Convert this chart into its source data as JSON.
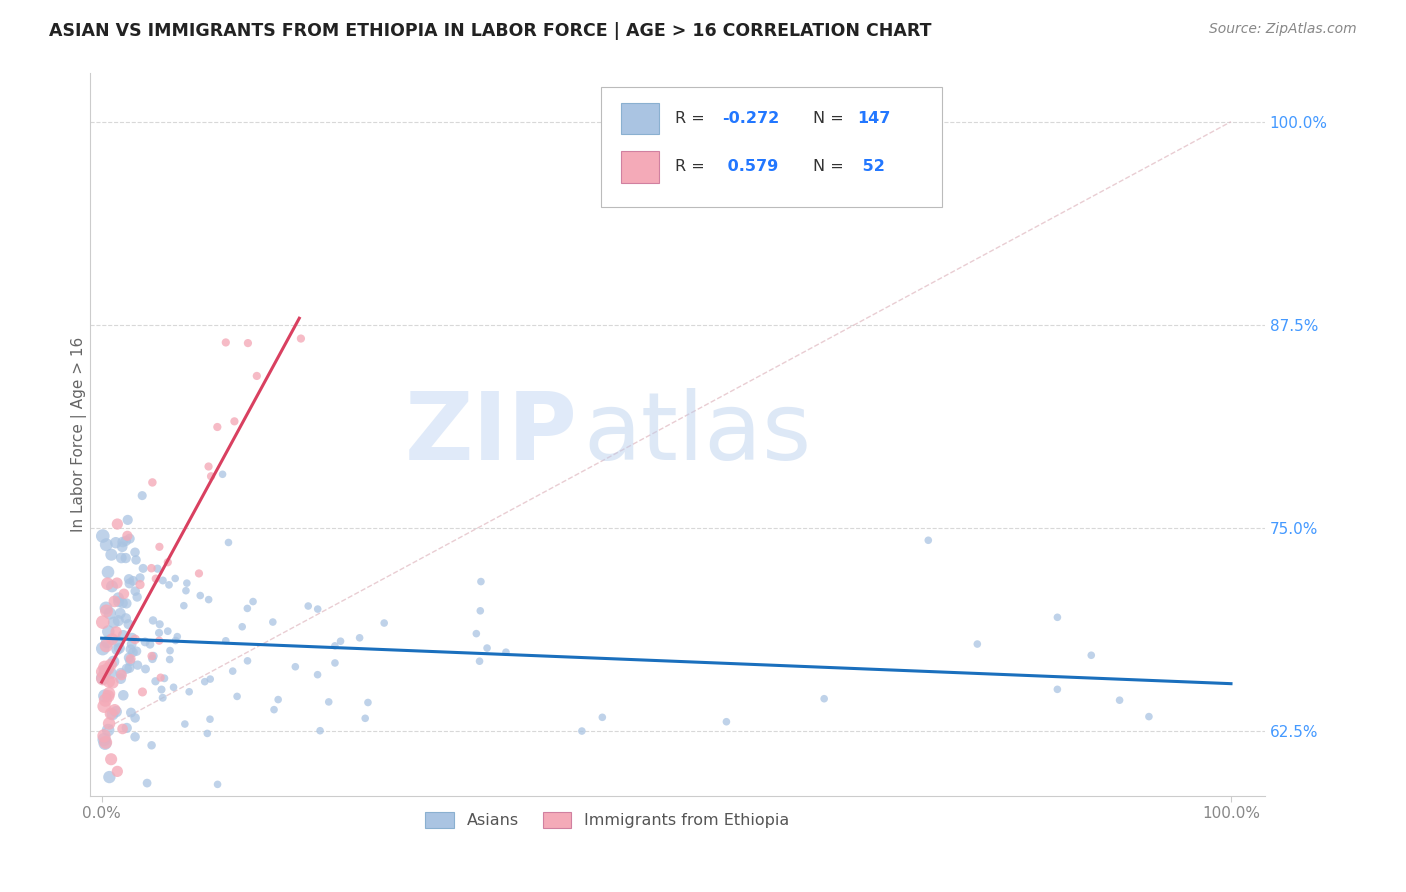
{
  "title": "ASIAN VS IMMIGRANTS FROM ETHIOPIA IN LABOR FORCE | AGE > 16 CORRELATION CHART",
  "source": "Source: ZipAtlas.com",
  "ylabel": "In Labor Force | Age > 16",
  "ytick_labels": [
    "62.5%",
    "75.0%",
    "87.5%",
    "100.0%"
  ],
  "ytick_values": [
    0.625,
    0.75,
    0.875,
    1.0
  ],
  "xlim": [
    -0.01,
    1.03
  ],
  "ylim": [
    0.585,
    1.03
  ],
  "legend_r_asian": "-0.272",
  "legend_n_asian": "147",
  "legend_r_ethiopia": "0.579",
  "legend_n_ethiopia": "52",
  "asian_color": "#aac4e2",
  "asian_edge_color": "#5a9fd4",
  "ethiopia_color": "#f4aab8",
  "ethiopia_edge_color": "#e06080",
  "asian_line_color": "#1a6fbd",
  "ethiopia_line_color": "#d94060",
  "diagonal_color": "#c8c8c8",
  "watermark_zip_color": "#ccddf0",
  "watermark_atlas_color": "#b8cce4",
  "grid_color": "#d8d8d8",
  "title_color": "#222222",
  "source_color": "#888888",
  "ylabel_color": "#666666",
  "tick_color": "#888888",
  "right_tick_color": "#4499ff",
  "legend_text_color": "#333333",
  "legend_n_color": "#2277ff"
}
